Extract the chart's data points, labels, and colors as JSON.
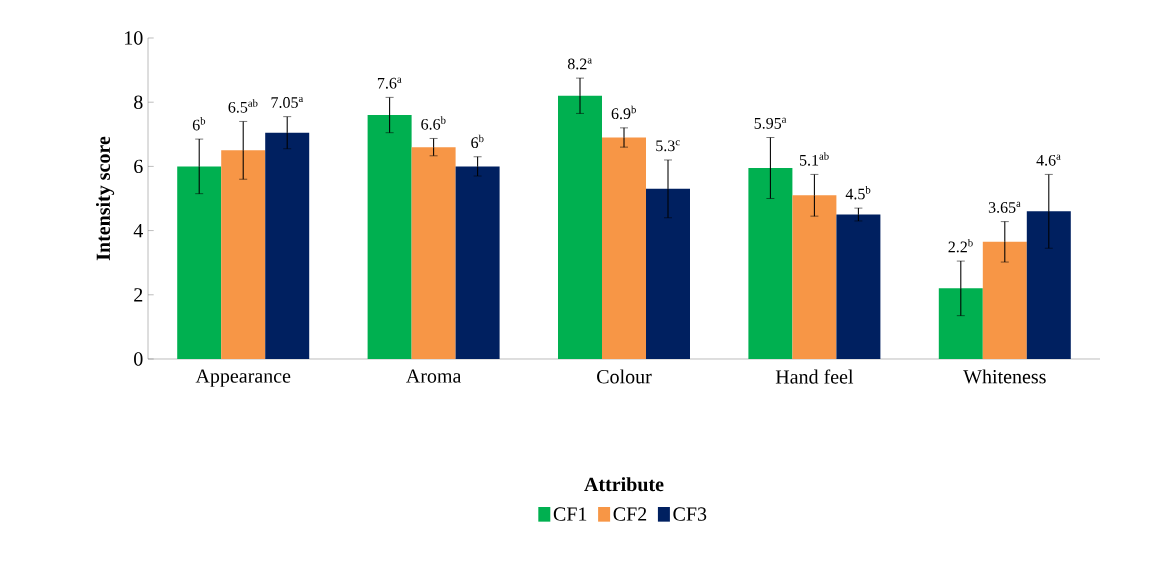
{
  "chart_data": {
    "type": "bar",
    "xlabel": "Attribute",
    "ylabel": "Intensity score",
    "categories": [
      "Appearance",
      "Aroma",
      "Colour",
      "Hand feel",
      "Whiteness"
    ],
    "series": [
      {
        "name": "CF1",
        "color": "#00b050",
        "values": [
          6,
          7.6,
          8.2,
          5.95,
          2.2
        ],
        "errors": [
          0.85,
          0.55,
          0.55,
          0.95,
          0.85
        ],
        "value_labels": [
          "6$^{b}$",
          "7.6$^{a}$",
          "8.2$^{a}$",
          "5.95$^{a}$",
          "2.2$^{b}$"
        ]
      },
      {
        "name": "CF2",
        "color": "#f79646",
        "values": [
          6.5,
          6.6,
          6.9,
          5.1,
          3.65
        ],
        "errors": [
          0.9,
          0.27,
          0.3,
          0.65,
          0.63
        ],
        "value_labels": [
          "6.5$^{ab}$",
          "6.6$^{b}$",
          "6.9$^{b}$",
          "5.1$^{ab}$",
          "3.65$^{a}$"
        ]
      },
      {
        "name": "CF3",
        "color": "#002060",
        "values": [
          7.05,
          6,
          5.3,
          4.5,
          4.6
        ],
        "errors": [
          0.5,
          0.3,
          0.9,
          0.2,
          1.15
        ],
        "value_labels": [
          "7.05$^{a}$",
          "6$^{b}$",
          "5.3$^{c}$",
          "4.5$^{b}$",
          "4.6$^{a}$"
        ]
      }
    ],
    "ylim": [
      0,
      10
    ],
    "yticks": [
      0,
      2,
      4,
      6,
      8,
      10
    ],
    "legend": "bottom"
  }
}
